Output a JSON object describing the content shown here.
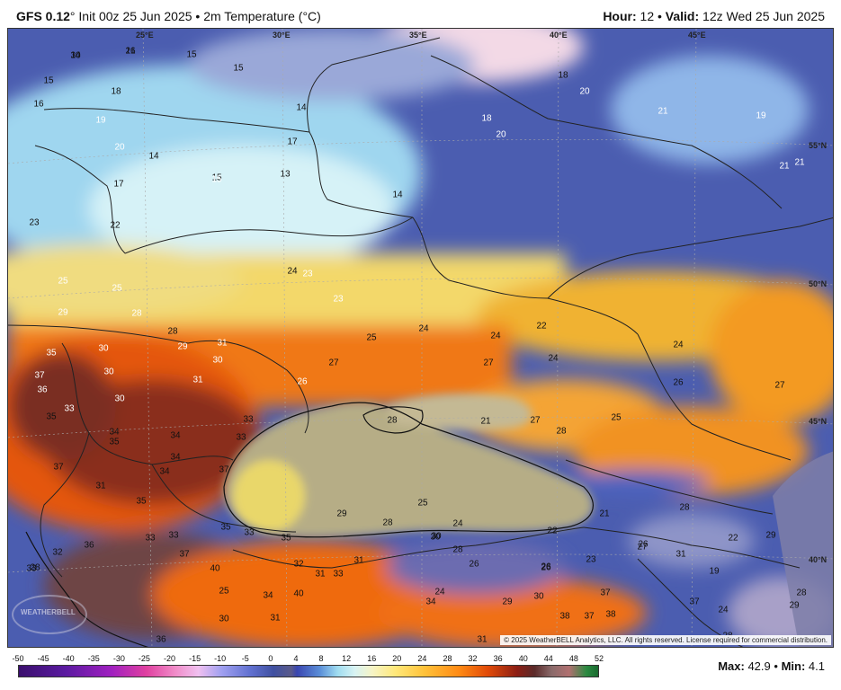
{
  "header": {
    "model": "GFS 0.12",
    "init": "Init 00z 25 Jun 2025",
    "field": "2m Temperature (°C)",
    "hour_label": "Hour:",
    "hour_value": "12",
    "valid_label": "Valid:",
    "valid_value": "12z Wed 25 Jun 2025"
  },
  "map": {
    "lon_labels": [
      "25°E",
      "30°E",
      "35°E",
      "40°E",
      "45°E"
    ],
    "lat_labels": [
      "55°N",
      "50°N",
      "45°N",
      "40°N"
    ],
    "copyright": "© 2025 WeatherBELL Analytics, LLC. All rights reserved. License required for commercial distribution.",
    "logo_text": "WEATHERBELL",
    "temperature_labels": [
      "14",
      "16",
      "15",
      "15",
      "15",
      "18",
      "16",
      "19",
      "20",
      "14",
      "17",
      "13",
      "15",
      "15",
      "18",
      "17",
      "14",
      "20",
      "21",
      "18",
      "20",
      "19",
      "21",
      "21",
      "14",
      "23",
      "22",
      "24",
      "23",
      "23",
      "25",
      "25",
      "29",
      "28",
      "28",
      "29",
      "30",
      "31",
      "30",
      "35",
      "30",
      "37",
      "36",
      "30",
      "33",
      "31",
      "26",
      "27",
      "25",
      "24",
      "24",
      "22",
      "24",
      "27",
      "28",
      "21",
      "27",
      "28",
      "25",
      "24",
      "26",
      "27",
      "35",
      "34",
      "34",
      "33",
      "33",
      "37",
      "34",
      "35",
      "31",
      "35",
      "34",
      "37",
      "33",
      "33",
      "35",
      "33",
      "32",
      "35",
      "36",
      "37",
      "32",
      "31",
      "31",
      "30",
      "29",
      "28",
      "25",
      "24",
      "30",
      "28",
      "26",
      "22",
      "23",
      "26",
      "21",
      "31",
      "28",
      "27",
      "26",
      "22",
      "29",
      "28",
      "25",
      "34",
      "40",
      "33",
      "30",
      "31",
      "40",
      "33",
      "36",
      "34",
      "24",
      "29",
      "30",
      "31",
      "32",
      "38",
      "37",
      "38",
      "37",
      "37",
      "28",
      "28",
      "29",
      "24",
      "19",
      "26",
      "30",
      "21"
    ]
  },
  "legend": {
    "ticks": [
      "-50",
      "-45",
      "-40",
      "-35",
      "-30",
      "-25",
      "-20",
      "-15",
      "-10",
      "-5",
      "0",
      "4",
      "8",
      "12",
      "16",
      "20",
      "24",
      "28",
      "32",
      "36",
      "40",
      "44",
      "48",
      "52"
    ]
  },
  "stats": {
    "max_label": "Max:",
    "max_value": "42.9",
    "min_label": "Min:",
    "min_value": "4.1"
  },
  "colors": {
    "cold_blue": "#4a5fb0",
    "cool_light": "#bfe6f5",
    "warm_yellow": "#f5d56a",
    "hot_orange": "#f07a18",
    "very_hot": "#7a2a1e",
    "sea_gray": "#b8b08a"
  }
}
